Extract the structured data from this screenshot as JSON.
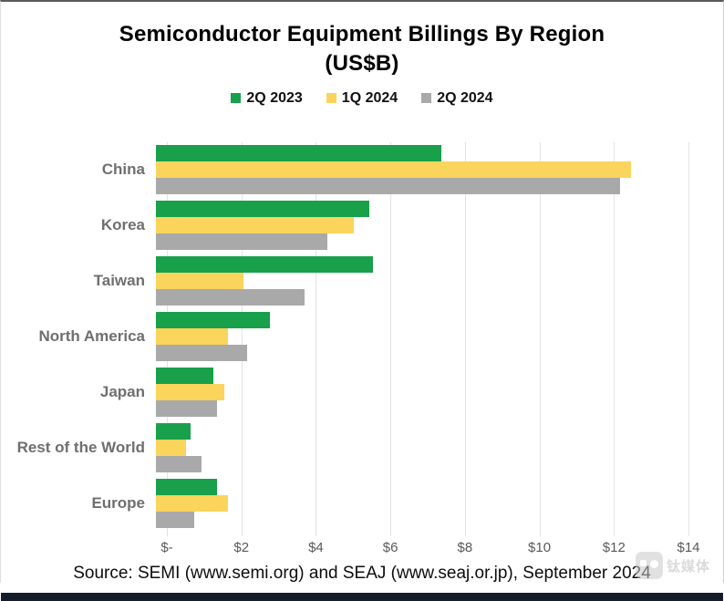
{
  "title": {
    "line1": "Semiconductor Equipment Billings By Region",
    "line2": "(US$B)"
  },
  "legend": [
    {
      "label": "2Q 2023",
      "color": "#18a04b"
    },
    {
      "label": "1Q 2024",
      "color": "#fbd45c"
    },
    {
      "label": "2Q 2024",
      "color": "#a9a9a9"
    }
  ],
  "chart_data": {
    "type": "bar",
    "orientation": "horizontal",
    "title": "Semiconductor Equipment Billings By Region (US$B)",
    "categories": [
      "China",
      "Korea",
      "Taiwan",
      "North America",
      "Japan",
      "Rest of the World",
      "Europe"
    ],
    "series": [
      {
        "name": "2Q 2023",
        "color": "#18a04b",
        "values": [
          7.5,
          5.6,
          5.7,
          3.0,
          1.5,
          0.9,
          1.6
        ]
      },
      {
        "name": "1Q 2024",
        "color": "#fbd45c",
        "values": [
          12.5,
          5.2,
          2.3,
          1.9,
          1.8,
          0.8,
          1.9
        ]
      },
      {
        "name": "2Q 2024",
        "color": "#a9a9a9",
        "values": [
          12.2,
          4.5,
          3.9,
          2.4,
          1.6,
          1.2,
          1.0
        ]
      }
    ],
    "xlabel": "",
    "ylabel": "",
    "xlim": [
      0,
      14
    ],
    "x_tick_step": 2,
    "x_ticks": [
      "$-",
      "$2",
      "$4",
      "$6",
      "$8",
      "$10",
      "$12",
      "$14"
    ],
    "grid": true,
    "gridline_color": "#e3e3e3",
    "legend_position": "top"
  },
  "source": "Source: SEMI (www.semi.org) and SEAJ (www.seaj.or.jp), September 2024",
  "watermark": {
    "text": "钛媒体"
  }
}
